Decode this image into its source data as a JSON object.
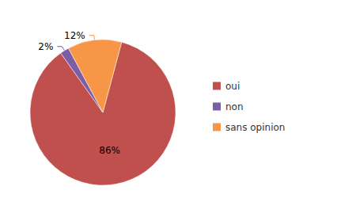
{
  "chart_data": {
    "type": "pie",
    "categories": [
      "oui",
      "non",
      "sans opinion"
    ],
    "values": [
      86,
      2,
      12
    ],
    "value_labels": [
      "86%",
      "2%",
      "12%"
    ],
    "colors": [
      "#c0504d",
      "#7b5ea7",
      "#f79646"
    ],
    "data_labels": true,
    "legend": "right"
  }
}
